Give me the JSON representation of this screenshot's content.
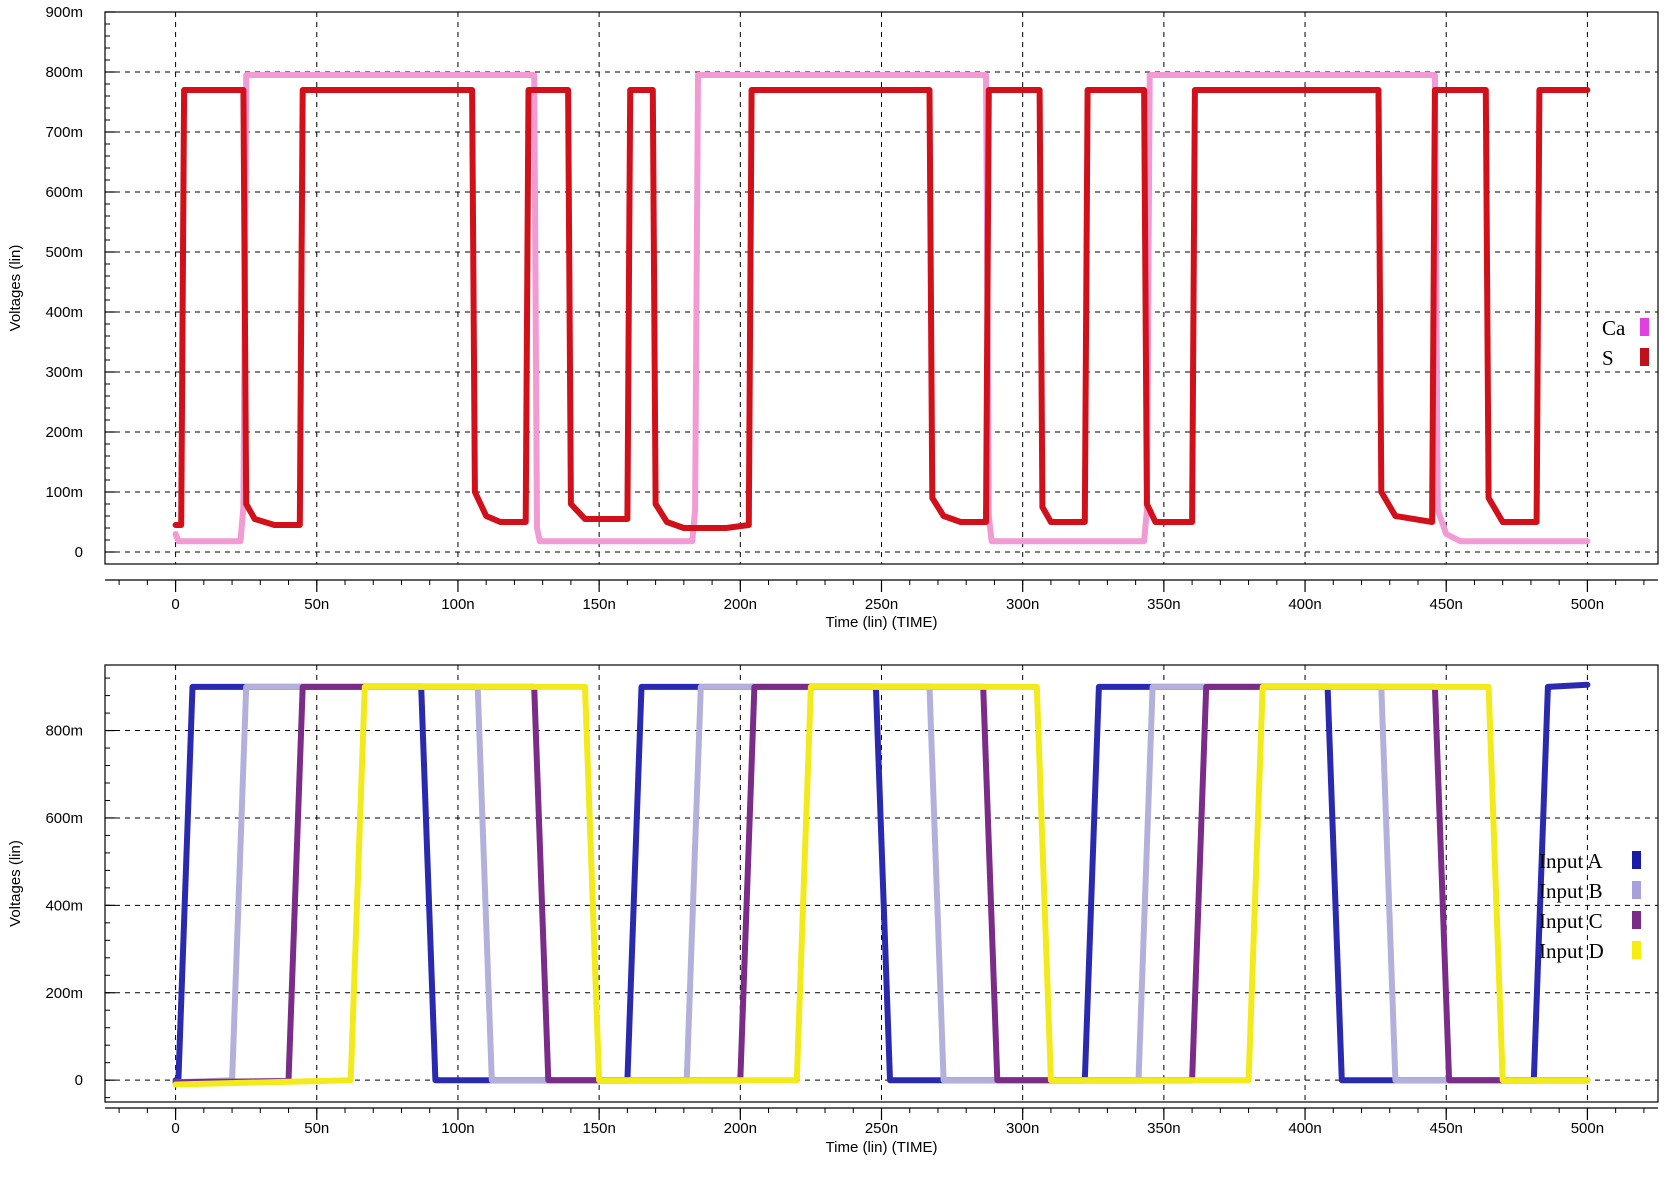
{
  "chart_data": [
    {
      "type": "line",
      "xlabel": "Time (lin) (TIME)",
      "ylabel": "Voltages (lin)",
      "xlim": [
        -25,
        525
      ],
      "ylim": [
        -20,
        900
      ],
      "x_ticks": [
        0,
        50,
        100,
        150,
        200,
        250,
        300,
        350,
        400,
        450,
        500
      ],
      "x_tick_labels": [
        "0",
        "50n",
        "100n",
        "150n",
        "200n",
        "250n",
        "300n",
        "350n",
        "400n",
        "450n",
        "500n"
      ],
      "y_ticks": [
        0,
        100,
        200,
        300,
        400,
        500,
        600,
        700,
        800,
        900
      ],
      "y_tick_labels": [
        "0",
        "100m",
        "200m",
        "300m",
        "400m",
        "500m",
        "600m",
        "700m",
        "800m",
        "900m"
      ],
      "grid": true,
      "legend": "right",
      "series": [
        {
          "name": "Ca",
          "color": "#f29ad4",
          "legend_color": "#e040e0",
          "points": [
            [
              0,
              30
            ],
            [
              1,
              18
            ],
            [
              23,
              18
            ],
            [
              24,
              75
            ],
            [
              25,
              795
            ],
            [
              127,
              795
            ],
            [
              128,
              40
            ],
            [
              129,
              18
            ],
            [
              183,
              18
            ],
            [
              184,
              70
            ],
            [
              185,
              795
            ],
            [
              287,
              795
            ],
            [
              288,
              60
            ],
            [
              289,
              18
            ],
            [
              343,
              18
            ],
            [
              344,
              70
            ],
            [
              345,
              795
            ],
            [
              446,
              795
            ],
            [
              447,
              70
            ],
            [
              450,
              30
            ],
            [
              455,
              18
            ],
            [
              500,
              18
            ]
          ]
        },
        {
          "name": "S",
          "color": "#d2101a",
          "legend_color": "#c0101a",
          "points": [
            [
              0,
              45
            ],
            [
              2,
              45
            ],
            [
              3,
              770
            ],
            [
              24,
              770
            ],
            [
              25,
              80
            ],
            [
              28,
              55
            ],
            [
              35,
              45
            ],
            [
              44,
              45
            ],
            [
              45,
              770
            ],
            [
              100,
              770
            ],
            [
              105,
              770
            ],
            [
              106,
              100
            ],
            [
              110,
              60
            ],
            [
              115,
              50
            ],
            [
              124,
              50
            ],
            [
              125,
              770
            ],
            [
              139,
              770
            ],
            [
              140,
              80
            ],
            [
              145,
              55
            ],
            [
              160,
              55
            ],
            [
              161,
              770
            ],
            [
              169,
              770
            ],
            [
              170,
              80
            ],
            [
              174,
              50
            ],
            [
              180,
              40
            ],
            [
              195,
              40
            ],
            [
              203,
              45
            ],
            [
              204,
              770
            ],
            [
              267,
              770
            ],
            [
              268,
              90
            ],
            [
              272,
              60
            ],
            [
              278,
              50
            ],
            [
              287,
              50
            ],
            [
              288,
              770
            ],
            [
              306,
              770
            ],
            [
              307,
              75
            ],
            [
              310,
              50
            ],
            [
              322,
              50
            ],
            [
              323,
              770
            ],
            [
              343,
              770
            ],
            [
              344,
              80
            ],
            [
              347,
              50
            ],
            [
              360,
              50
            ],
            [
              361,
              770
            ],
            [
              426,
              770
            ],
            [
              427,
              100
            ],
            [
              432,
              60
            ],
            [
              445,
              50
            ],
            [
              446,
              770
            ],
            [
              464,
              770
            ],
            [
              465,
              90
            ],
            [
              470,
              50
            ],
            [
              482,
              50
            ],
            [
              483,
              770
            ],
            [
              500,
              770
            ]
          ]
        }
      ]
    },
    {
      "type": "line",
      "xlabel": "Time (lin) (TIME)",
      "ylabel": "Voltages (lin)",
      "xlim": [
        -25,
        525
      ],
      "ylim": [
        -50,
        950
      ],
      "x_ticks": [
        0,
        50,
        100,
        150,
        200,
        250,
        300,
        350,
        400,
        450,
        500
      ],
      "x_tick_labels": [
        "0",
        "50n",
        "100n",
        "150n",
        "200n",
        "250n",
        "300n",
        "350n",
        "400n",
        "450n",
        "500n"
      ],
      "y_ticks": [
        0,
        200,
        400,
        600,
        800
      ],
      "y_tick_labels": [
        "0",
        "200m",
        "400m",
        "600m",
        "800m"
      ],
      "grid": true,
      "legend": "right",
      "series": [
        {
          "name": "Input A",
          "color": "#2a2ab0",
          "legend_color": "#1a1aa8",
          "points": [
            [
              0,
              0
            ],
            [
              1,
              0
            ],
            [
              6,
              900
            ],
            [
              87,
              900
            ],
            [
              92,
              0
            ],
            [
              160,
              0
            ],
            [
              165,
              900
            ],
            [
              248,
              900
            ],
            [
              253,
              0
            ],
            [
              322,
              0
            ],
            [
              327,
              900
            ],
            [
              408,
              900
            ],
            [
              413,
              0
            ],
            [
              481,
              0
            ],
            [
              486,
              900
            ],
            [
              500,
              905
            ]
          ]
        },
        {
          "name": "Input B",
          "color": "#b4b0dc",
          "legend_color": "#a8a0dc",
          "points": [
            [
              0,
              -5
            ],
            [
              20,
              0
            ],
            [
              25,
              900
            ],
            [
              107,
              900
            ],
            [
              112,
              0
            ],
            [
              181,
              0
            ],
            [
              186,
              900
            ],
            [
              267,
              900
            ],
            [
              272,
              0
            ],
            [
              341,
              0
            ],
            [
              346,
              900
            ],
            [
              427,
              900
            ],
            [
              432,
              0
            ],
            [
              500,
              0
            ]
          ]
        },
        {
          "name": "Input C",
          "color": "#7a2c88",
          "legend_color": "#7a2c88",
          "points": [
            [
              0,
              -5
            ],
            [
              40,
              -2
            ],
            [
              45,
              900
            ],
            [
              127,
              900
            ],
            [
              132,
              0
            ],
            [
              200,
              0
            ],
            [
              205,
              900
            ],
            [
              286,
              900
            ],
            [
              291,
              0
            ],
            [
              360,
              0
            ],
            [
              365,
              900
            ],
            [
              446,
              900
            ],
            [
              451,
              0
            ],
            [
              500,
              0
            ]
          ]
        },
        {
          "name": "Input D",
          "color": "#f2ea1a",
          "legend_color": "#f5ee10",
          "points": [
            [
              0,
              -10
            ],
            [
              62,
              0
            ],
            [
              67,
              900
            ],
            [
              145,
              900
            ],
            [
              150,
              0
            ],
            [
              220,
              0
            ],
            [
              225,
              900
            ],
            [
              305,
              900
            ],
            [
              310,
              0
            ],
            [
              380,
              0
            ],
            [
              385,
              900
            ],
            [
              465,
              900
            ],
            [
              470,
              0
            ],
            [
              500,
              0
            ]
          ]
        }
      ]
    }
  ]
}
